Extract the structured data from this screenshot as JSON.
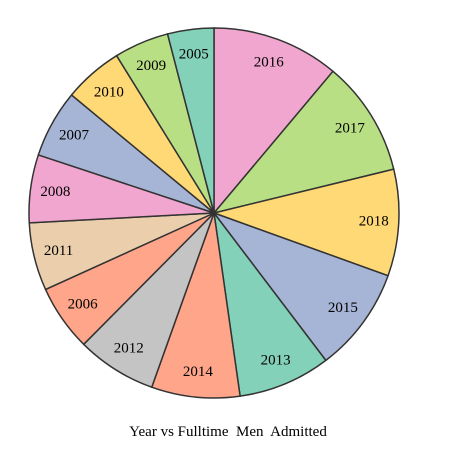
{
  "chart_data": {
    "type": "pie",
    "title": "Year vs Fulltime  Men  Admitted",
    "categories": [
      "2016",
      "2017",
      "2018",
      "2015",
      "2013",
      "2014",
      "2012",
      "2006",
      "2011",
      "2008",
      "2007",
      "2010",
      "2009",
      "2005"
    ],
    "values": [
      52.3,
      47.4,
      43.8,
      43.1,
      38.0,
      36.3,
      32.8,
      27.2,
      27.9,
      27.9,
      27.9,
      24.3,
      22.5,
      19.0
    ],
    "colors": [
      "#f1a6d0",
      "#b8df84",
      "#ffd976",
      "#a6b5d5",
      "#82d1b8",
      "#fea58a",
      "#c4c4c4",
      "#fea58a",
      "#ebcfac",
      "#f1a6d0",
      "#a6b5d5",
      "#ffd976",
      "#b8df84",
      "#82d1b8"
    ],
    "start": "12 o'clock",
    "direction": "clockwise",
    "legend": "none",
    "label_placement": "inside"
  }
}
